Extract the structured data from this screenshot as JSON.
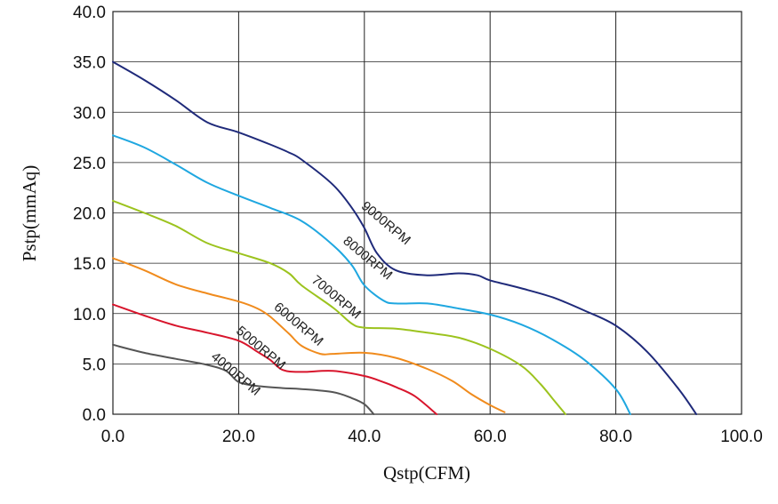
{
  "chart_data": {
    "type": "line",
    "title": "",
    "xlabel": "Qstp(CFM)",
    "ylabel": "Pstp(mmAq)",
    "xlim": [
      0,
      100
    ],
    "ylim": [
      0,
      40
    ],
    "grid": true,
    "x_ticks": [
      "0.0",
      "20.0",
      "40.0",
      "60.0",
      "80.0",
      "100.0"
    ],
    "y_ticks": [
      "0.0",
      "5.0",
      "10.0",
      "15.0",
      "20.0",
      "25.0",
      "30.0",
      "35.0",
      "40.0"
    ],
    "series": [
      {
        "name": "9000RPM",
        "color": "#1f2a7a",
        "points": [
          [
            0,
            35.0
          ],
          [
            5,
            33.2
          ],
          [
            10,
            31.2
          ],
          [
            15,
            29.0
          ],
          [
            20,
            28.0
          ],
          [
            25,
            26.8
          ],
          [
            28,
            26.0
          ],
          [
            30,
            25.3
          ],
          [
            35,
            22.8
          ],
          [
            38,
            20.5
          ],
          [
            40,
            18.5
          ],
          [
            42,
            16.0
          ],
          [
            45,
            14.3
          ],
          [
            50,
            13.8
          ],
          [
            55,
            14.0
          ],
          [
            58,
            13.8
          ],
          [
            60,
            13.3
          ],
          [
            65,
            12.5
          ],
          [
            70,
            11.6
          ],
          [
            75,
            10.3
          ],
          [
            80,
            8.8
          ],
          [
            85,
            6.2
          ],
          [
            90,
            2.5
          ],
          [
            92.8,
            0.0
          ]
        ]
      },
      {
        "name": "8000RPM",
        "color": "#1fa7e0",
        "points": [
          [
            0,
            27.7
          ],
          [
            5,
            26.5
          ],
          [
            10,
            24.8
          ],
          [
            15,
            23.0
          ],
          [
            20,
            21.7
          ],
          [
            25,
            20.5
          ],
          [
            30,
            19.2
          ],
          [
            35,
            16.8
          ],
          [
            38,
            14.8
          ],
          [
            40,
            12.8
          ],
          [
            43,
            11.3
          ],
          [
            45,
            11.0
          ],
          [
            50,
            11.0
          ],
          [
            55,
            10.5
          ],
          [
            60,
            9.9
          ],
          [
            65,
            8.9
          ],
          [
            70,
            7.4
          ],
          [
            75,
            5.4
          ],
          [
            80,
            2.5
          ],
          [
            82.3,
            0.0
          ]
        ]
      },
      {
        "name": "7000RPM",
        "color": "#9cc31e",
        "points": [
          [
            0,
            21.2
          ],
          [
            5,
            20.0
          ],
          [
            10,
            18.7
          ],
          [
            15,
            17.0
          ],
          [
            20,
            16.0
          ],
          [
            25,
            15.0
          ],
          [
            28,
            14.0
          ],
          [
            30,
            12.8
          ],
          [
            35,
            10.6
          ],
          [
            38,
            9.0
          ],
          [
            40,
            8.6
          ],
          [
            45,
            8.5
          ],
          [
            50,
            8.1
          ],
          [
            55,
            7.6
          ],
          [
            60,
            6.5
          ],
          [
            65,
            4.8
          ],
          [
            68,
            3.0
          ],
          [
            70,
            1.5
          ],
          [
            72,
            0.0
          ]
        ]
      },
      {
        "name": "6000RPM",
        "color": "#f08b1d",
        "points": [
          [
            0,
            15.5
          ],
          [
            5,
            14.3
          ],
          [
            10,
            12.9
          ],
          [
            15,
            12.0
          ],
          [
            20,
            11.2
          ],
          [
            23,
            10.5
          ],
          [
            25,
            9.7
          ],
          [
            28,
            8.0
          ],
          [
            30,
            6.8
          ],
          [
            33,
            6.0
          ],
          [
            35,
            6.0
          ],
          [
            40,
            6.1
          ],
          [
            45,
            5.6
          ],
          [
            50,
            4.5
          ],
          [
            54,
            3.3
          ],
          [
            57,
            2.0
          ],
          [
            60,
            0.9
          ],
          [
            62.3,
            0.2
          ]
        ]
      },
      {
        "name": "5000RPM",
        "color": "#d8152c",
        "points": [
          [
            0,
            10.9
          ],
          [
            5,
            9.8
          ],
          [
            10,
            8.8
          ],
          [
            15,
            8.1
          ],
          [
            20,
            7.3
          ],
          [
            23,
            6.2
          ],
          [
            25,
            5.4
          ],
          [
            27,
            4.4
          ],
          [
            30,
            4.2
          ],
          [
            35,
            4.3
          ],
          [
            40,
            3.8
          ],
          [
            43,
            3.2
          ],
          [
            45,
            2.7
          ],
          [
            48,
            1.8
          ],
          [
            51.5,
            0.0
          ]
        ]
      },
      {
        "name": "4000RPM",
        "color": "#555555",
        "points": [
          [
            0,
            6.9
          ],
          [
            5,
            6.1
          ],
          [
            10,
            5.5
          ],
          [
            15,
            4.9
          ],
          [
            18,
            4.3
          ],
          [
            20,
            3.2
          ],
          [
            23,
            2.8
          ],
          [
            27,
            2.6
          ],
          [
            30,
            2.5
          ],
          [
            35,
            2.2
          ],
          [
            38,
            1.6
          ],
          [
            40,
            1.0
          ],
          [
            41.5,
            0.0
          ]
        ]
      }
    ]
  }
}
